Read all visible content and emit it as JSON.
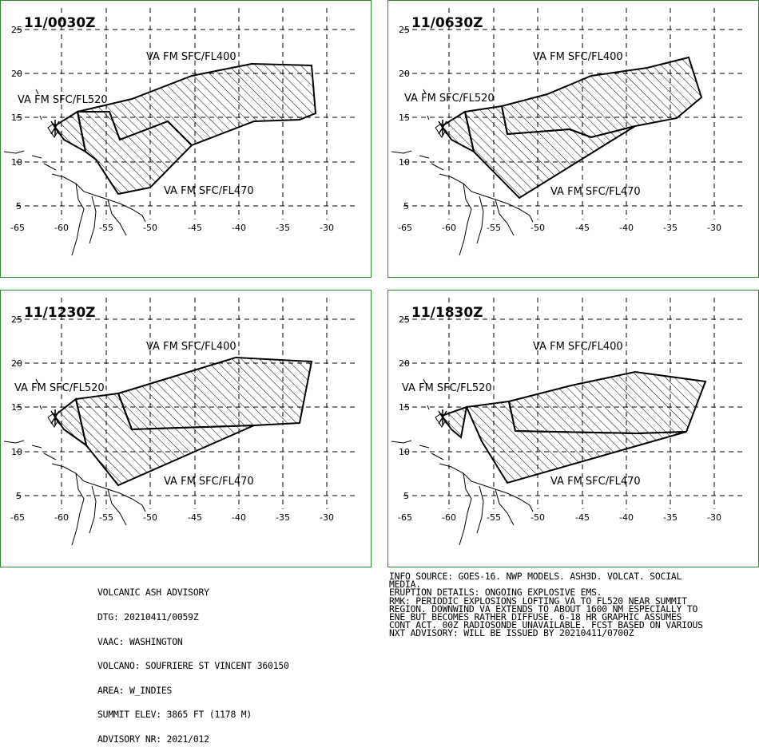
{
  "colors": {
    "frame": "#2e8b2e",
    "polygon": "#000000",
    "grid": "#000000",
    "background": "#ffffff"
  },
  "axes": {
    "lon_ticks": [
      "-65",
      "-60",
      "-55",
      "-50",
      "-45",
      "-40",
      "-35",
      "-30"
    ],
    "lat_ticks": [
      "25",
      "20",
      "15",
      "10",
      "5"
    ]
  },
  "panels": [
    {
      "time": "11/0030Z",
      "labels": {
        "fl400": "VA FM SFC/FL400",
        "fl520": "VA FM SFC/FL520",
        "fl470": "VA FM SFC/FL470"
      }
    },
    {
      "time": "11/0630Z",
      "labels": {
        "fl400": "VA FM SFC/FL400",
        "fl520": "VA FM SFC/FL520",
        "fl470": "VA FM SFC/FL470"
      }
    },
    {
      "time": "11/1230Z",
      "labels": {
        "fl400": "VA FM SFC/FL400",
        "fl520": "VA FM SFC/FL520",
        "fl470": "VA FM SFC/FL470"
      }
    },
    {
      "time": "11/1830Z",
      "labels": {
        "fl400": "VA FM SFC/FL400",
        "fl520": "VA FM SFC/FL520",
        "fl470": "VA FM SFC/FL470"
      }
    }
  ],
  "advisory_left": [
    "VOLCANIC ASH ADVISORY",
    "DTG: 20210411/0059Z",
    "VAAC: WASHINGTON",
    "VOLCANO: SOUFRIERE ST VINCENT 360150",
    "AREA: W_INDIES",
    "SUMMIT ELEV: 3865 FT (1178 M)",
    "ADVISORY NR: 2021/012"
  ],
  "advisory_right": [
    "INFO SOURCE: GOES-16. NWP MODELS. ASH3D. VOLCAT. SOCIAL",
    "MEDIA.",
    "ERUPTION DETAILS: ONGOING EXPLOSIVE EMS.",
    "RMK: PERIODIC EXPLOSIONS LOFTING VA TO FL520 NEAR SUMMIT",
    "REGION. DOWNWIND VA EXTENDS TO ABOUT 1600 NM ESPECIALLY TO",
    "ENE BUT BECOMES RATHER DIFFUSE. 6-18 HR GRAPHIC ASSUMES",
    "CONT ACT. 00Z RADIOSONDE UNAVAILABLE. FCST BASED ON VARIOUS",
    "NXT ADVISORY: WILL BE ISSUED BY 20210411/0700Z"
  ]
}
